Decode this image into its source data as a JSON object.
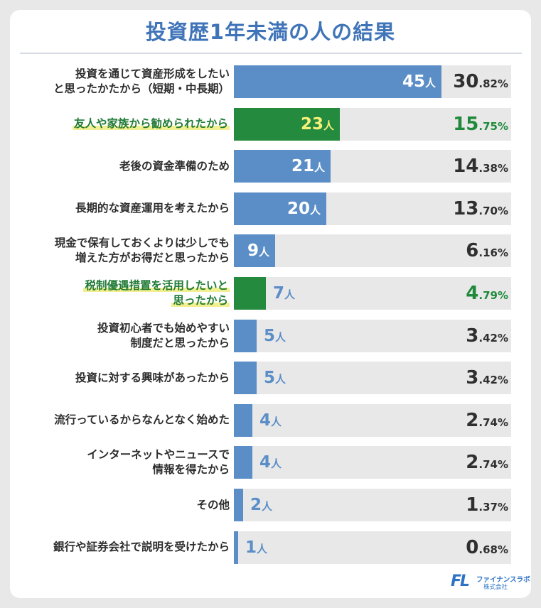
{
  "title": "投資歴1年未満の人の結果",
  "unit": "人",
  "colors": {
    "bar": "#5b8ec7",
    "highlight": "#248a3d",
    "title": "#3f74b8",
    "track": "#e8e8e8"
  },
  "chart_data": {
    "type": "bar",
    "orientation": "horizontal",
    "title": "投資歴1年未満の人の結果",
    "xlim": [
      0,
      45
    ],
    "categories": [
      [
        "投資を通じて資産形成をしたい",
        "と思ったかたから（短期・中長期）"
      ],
      [
        "友人や家族から勧められたから"
      ],
      [
        "老後の資金準備のため"
      ],
      [
        "長期的な資産運用を考えたから"
      ],
      [
        "現金で保有しておくよりは少しでも",
        "増えた方がお得だと思ったから"
      ],
      [
        "税制優遇措置を活用したいと",
        "思ったから"
      ],
      [
        "投資初心者でも始めやすい",
        "制度だと思ったから"
      ],
      [
        "投資に対する興味があったから"
      ],
      [
        "流行っているからなんとなく始めた"
      ],
      [
        "インターネットやニュースで",
        "情報を得たから"
      ],
      [
        "その他"
      ],
      [
        "銀行や証券会社で説明を受けたから"
      ]
    ],
    "values": [
      45,
      23,
      21,
      20,
      9,
      7,
      5,
      5,
      4,
      4,
      2,
      1
    ],
    "percent_int": [
      "30",
      "15",
      "14",
      "13",
      "6",
      "4",
      "3",
      "3",
      "2",
      "2",
      "1",
      "0"
    ],
    "percent_dec": [
      ".82%",
      ".75%",
      ".38%",
      ".70%",
      ".16%",
      ".79%",
      ".42%",
      ".42%",
      ".74%",
      ".74%",
      ".37%",
      ".68%"
    ],
    "highlighted": [
      false,
      true,
      false,
      false,
      false,
      true,
      false,
      false,
      false,
      false,
      false,
      false
    ]
  },
  "logo": {
    "mark": "FL",
    "name": "ファイナンスラボ",
    "sub": "株式会社"
  }
}
